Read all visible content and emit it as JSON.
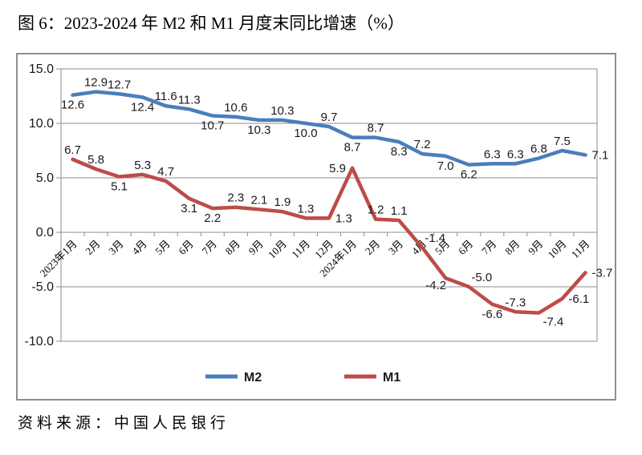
{
  "title": "图 6：2023-2024 年 M2 和 M1 月度末同比增速（%）",
  "source": "资料来源：中国人民银行",
  "chart_data": {
    "type": "line",
    "title": "图 6：2023-2024 年 M2 和 M1 月度末同比增速（%）",
    "categories": [
      "2023年1月",
      "2月",
      "3月",
      "4月",
      "5月",
      "6月",
      "7月",
      "8月",
      "9月",
      "10月",
      "11月",
      "12月",
      "2024年1月",
      "2月",
      "3月",
      "4月",
      "5月",
      "6月",
      "7月",
      "8月",
      "9月",
      "10月",
      "11月"
    ],
    "series": [
      {
        "name": "M2",
        "color": "#4a7ebb",
        "values": [
          12.6,
          12.9,
          12.7,
          12.4,
          11.6,
          11.3,
          10.7,
          10.6,
          10.3,
          10.3,
          10.0,
          9.7,
          8.7,
          8.7,
          8.3,
          7.2,
          7.0,
          6.2,
          6.3,
          6.3,
          6.8,
          7.5,
          7.1
        ],
        "label_side": [
          "below",
          "above",
          "above",
          "below",
          "above",
          "above",
          "below",
          "above",
          "below",
          "above",
          "below",
          "above",
          "below",
          "above",
          "below",
          "above",
          "below",
          "below",
          "above",
          "above",
          "above",
          "above",
          "right"
        ]
      },
      {
        "name": "M1",
        "color": "#bе4b48",
        "values": [
          6.7,
          5.8,
          5.1,
          5.3,
          4.7,
          3.1,
          2.2,
          2.3,
          2.1,
          1.9,
          1.3,
          1.3,
          5.9,
          1.2,
          1.1,
          -1.4,
          -4.2,
          -5.0,
          -6.6,
          -7.3,
          -7.4,
          -6.1,
          -3.7
        ],
        "label_side": [
          "above",
          "above",
          "below",
          "above",
          "above",
          "below",
          "below",
          "above",
          "above",
          "above",
          "above",
          "right",
          "left",
          "above",
          "above",
          "above-right",
          "below-left",
          "above-right",
          "below",
          "above",
          "below-right",
          "right",
          "right"
        ]
      }
    ],
    "ylim": [
      -10,
      15
    ],
    "ytick_step": 5,
    "ytick_labels": [
      "15.0",
      "10.0",
      "5.0",
      "0.0",
      "-5.0",
      "-10.0"
    ],
    "xlabel": "",
    "ylabel": "",
    "grid": true,
    "legend_position": "bottom-inside",
    "colors": {
      "m2_blue": "#4a7ebb",
      "m1_red": "#be4b48",
      "grid_gray": "#8e8e8e"
    }
  }
}
